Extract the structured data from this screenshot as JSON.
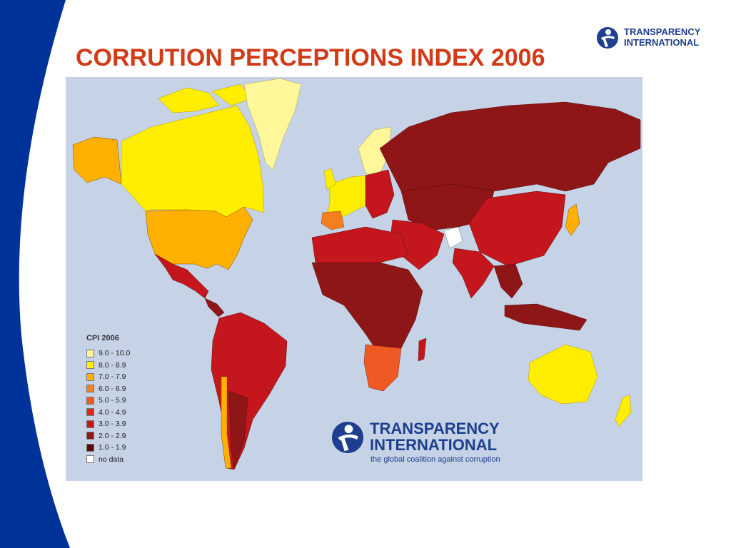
{
  "slide": {
    "title": "CORRUTION PERCEPTIONS INDEX 2006",
    "band_color": "#003399",
    "title_color": "#d13b17"
  },
  "corner_logo": {
    "line1": "TRANSPARENCY",
    "line2": "INTERNATIONAL",
    "color": "#1e3f8e"
  },
  "map": {
    "ocean_color": "#c6d2e6",
    "legend": {
      "title": "CPI 2006",
      "items": [
        {
          "label": "9.0 - 10.0",
          "color": "#fff799"
        },
        {
          "label": "8.0 - 8.9",
          "color": "#ffee00"
        },
        {
          "label": "7.0 - 7.9",
          "color": "#ffb000"
        },
        {
          "label": "6.0 - 6.9",
          "color": "#f57f1f"
        },
        {
          "label": "5.0 - 5.9",
          "color": "#ef5a24"
        },
        {
          "label": "4.0 - 4.9",
          "color": "#e2231a"
        },
        {
          "label": "3.0 - 3.9",
          "color": "#c4161c"
        },
        {
          "label": "2.0 - 2.9",
          "color": "#8e1616"
        },
        {
          "label": "1.0 - 1.9",
          "color": "#5a0b0b"
        },
        {
          "label": "no data",
          "color": "#ffffff"
        }
      ]
    }
  },
  "ti_logo": {
    "line1": "TRANSPARENCY",
    "line2": "INTERNATIONAL",
    "tagline": "the global coalition against corruption",
    "color": "#1e3f8e"
  }
}
